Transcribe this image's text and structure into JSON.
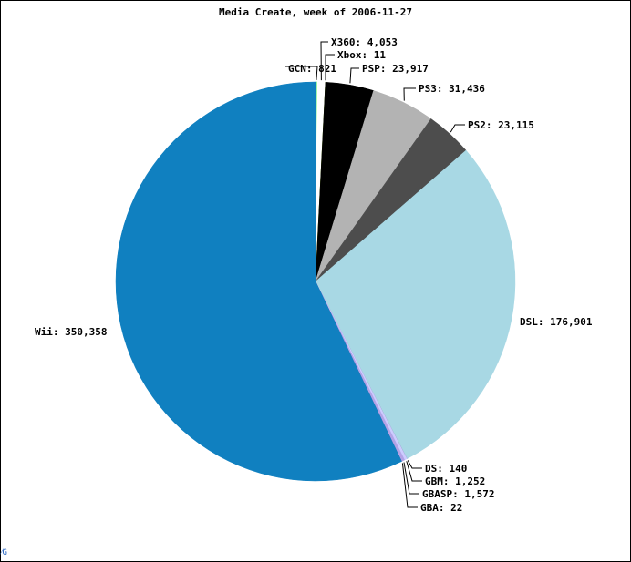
{
  "chart_data": {
    "type": "pie",
    "title": "Media Create, week of 2006-11-27",
    "start_angle_deg": 0,
    "direction": "clockwise",
    "slices": [
      {
        "name": "GCN",
        "label": "GCN: 821",
        "value": 821,
        "color": "#44ee55"
      },
      {
        "name": "X360",
        "label": "X360: 4,053",
        "value": 4053,
        "color": "#ffffff"
      },
      {
        "name": "Xbox",
        "label": "Xbox: 11",
        "value": 11,
        "color": "#6b8e23"
      },
      {
        "name": "PSP",
        "label": "PSP: 23,917",
        "value": 23917,
        "color": "#000000"
      },
      {
        "name": "PS3",
        "label": "PS3: 31,436",
        "value": 31436,
        "color": "#b3b3b3"
      },
      {
        "name": "PS2",
        "label": "PS2: 23,115",
        "value": 23115,
        "color": "#4d4d4d"
      },
      {
        "name": "DSL",
        "label": "DSL: 176,901",
        "value": 176901,
        "color": "#a8d8e4"
      },
      {
        "name": "DS",
        "label": "DS: 140",
        "value": 140,
        "color": "#9999cc"
      },
      {
        "name": "GBM",
        "label": "GBM: 1,252",
        "value": 1252,
        "color": "#ccccff"
      },
      {
        "name": "GBASP",
        "label": "GBASP: 1,572",
        "value": 1572,
        "color": "#b3a3e6"
      },
      {
        "name": "GBA",
        "label": "GBA: 22",
        "value": 22,
        "color": "#6666aa"
      },
      {
        "name": "Wii",
        "label": "Wii: 350,358",
        "value": 350358,
        "color": "#1080c0"
      }
    ]
  }
}
